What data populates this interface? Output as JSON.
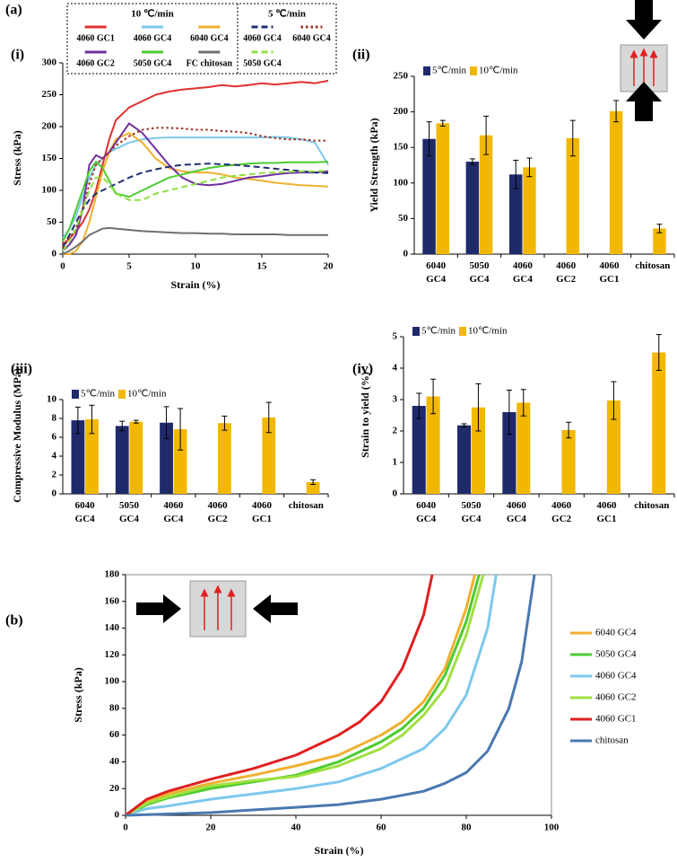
{
  "figure_labels": [
    "(a)",
    "(b)"
  ],
  "chart_data": [
    {
      "type": "line",
      "panel": "(i)",
      "xlabel": "Strain (%)",
      "ylabel": "Stress (kPa)",
      "xlim": [
        0,
        20
      ],
      "xticks": [
        0,
        5,
        10,
        15,
        20
      ],
      "ylim": [
        0,
        300
      ],
      "yticks": [
        0,
        50,
        100,
        150,
        200,
        250,
        300
      ],
      "legend": "upper center",
      "legend_titles": [
        "10 ℃/min",
        "5 ℃/min"
      ],
      "series": [
        {
          "name": "4060 GC1",
          "color": "#e03030",
          "linestyle": "solid",
          "x": [
            0,
            0.5,
            1,
            1.5,
            2,
            2.5,
            3,
            3.5,
            4,
            5,
            6,
            7,
            8,
            9,
            10,
            11,
            12,
            13,
            14,
            15,
            16,
            17,
            18,
            19,
            20
          ],
          "values": [
            15,
            25,
            35,
            50,
            70,
            100,
            140,
            180,
            210,
            230,
            240,
            250,
            255,
            258,
            260,
            262,
            265,
            263,
            265,
            268,
            266,
            268,
            270,
            268,
            272
          ]
        },
        {
          "name": "4060 GC4",
          "color": "#7cc8ec",
          "linestyle": "solid",
          "x": [
            0,
            0.5,
            1,
            1.5,
            2,
            2.5,
            3,
            3.5,
            4,
            5,
            6,
            7,
            8,
            9,
            10,
            11,
            12,
            13,
            14,
            15,
            16,
            17,
            18,
            19,
            20
          ],
          "values": [
            25,
            40,
            60,
            90,
            120,
            140,
            150,
            160,
            165,
            175,
            180,
            182,
            183,
            183,
            183,
            183,
            183,
            183,
            183,
            183,
            184,
            183,
            180,
            175,
            140
          ]
        },
        {
          "name": "6040 GC4",
          "color": "#f0b030",
          "linestyle": "solid",
          "x": [
            0,
            0.5,
            1,
            1.5,
            2,
            2.5,
            3,
            3.5,
            4,
            5,
            6,
            7,
            8,
            9,
            10,
            11,
            12,
            13,
            14,
            15,
            16,
            17,
            18,
            19,
            20
          ],
          "values": [
            0,
            0,
            5,
            20,
            50,
            90,
            130,
            160,
            180,
            190,
            175,
            150,
            135,
            130,
            128,
            128,
            125,
            120,
            118,
            115,
            112,
            110,
            108,
            107,
            106
          ]
        },
        {
          "name": "4060 GC2",
          "color": "#7030a0",
          "linestyle": "solid",
          "x": [
            0,
            0.5,
            1,
            1.5,
            2,
            2.5,
            3,
            3.5,
            4,
            5,
            6,
            7,
            8,
            9,
            10,
            11,
            12,
            13,
            14,
            15,
            16,
            17,
            18,
            19,
            20
          ],
          "values": [
            5,
            15,
            30,
            70,
            140,
            155,
            150,
            160,
            175,
            205,
            190,
            165,
            140,
            120,
            110,
            108,
            110,
            115,
            120,
            122,
            125,
            127,
            128,
            128,
            130
          ]
        },
        {
          "name": "5050 GC4",
          "color": "#4ccc30",
          "linestyle": "solid",
          "x": [
            0,
            0.5,
            1,
            1.5,
            2,
            2.5,
            3,
            3.5,
            4,
            5,
            6,
            7,
            8,
            9,
            10,
            11,
            12,
            13,
            14,
            15,
            16,
            17,
            18,
            19,
            20
          ],
          "values": [
            20,
            40,
            70,
            100,
            130,
            145,
            135,
            115,
            95,
            90,
            100,
            110,
            120,
            125,
            130,
            135,
            138,
            140,
            142,
            143,
            143,
            144,
            144,
            144,
            145
          ]
        },
        {
          "name": "FC chitosan",
          "color": "#707070",
          "linestyle": "solid",
          "x": [
            0,
            0.5,
            1,
            1.5,
            2,
            2.5,
            3,
            3.5,
            4,
            5,
            6,
            7,
            8,
            9,
            10,
            11,
            12,
            13,
            14,
            15,
            16,
            17,
            18,
            19,
            20
          ],
          "values": [
            0,
            5,
            12,
            20,
            30,
            35,
            40,
            41,
            40,
            38,
            36,
            35,
            34,
            33,
            33,
            32,
            32,
            31,
            31,
            31,
            31,
            30,
            30,
            30,
            30
          ]
        },
        {
          "name": "4060 GC4",
          "color": "#1f3070",
          "linestyle": "dashed",
          "x": [
            0,
            0.5,
            1,
            1.5,
            2,
            2.5,
            3,
            3.5,
            4,
            5,
            6,
            7,
            8,
            9,
            10,
            11,
            12,
            13,
            14,
            15,
            16,
            17,
            18,
            19,
            20
          ],
          "values": [
            10,
            30,
            50,
            70,
            85,
            95,
            100,
            105,
            110,
            120,
            128,
            133,
            137,
            140,
            141,
            142,
            141,
            140,
            138,
            136,
            134,
            132,
            130,
            128,
            127
          ]
        },
        {
          "name": "6040 GC4",
          "color": "#a03020",
          "linestyle": "dotted",
          "x": [
            0,
            0.5,
            1,
            1.5,
            2,
            2.5,
            3,
            3.5,
            4,
            5,
            6,
            7,
            8,
            9,
            10,
            11,
            12,
            13,
            14,
            15,
            16,
            17,
            18,
            19,
            20
          ],
          "values": [
            10,
            25,
            40,
            70,
            110,
            140,
            150,
            160,
            170,
            185,
            195,
            198,
            198,
            197,
            195,
            195,
            193,
            192,
            190,
            185,
            182,
            180,
            180,
            178,
            178
          ]
        },
        {
          "name": "5050 GC4",
          "color": "#90e040",
          "linestyle": "dashed",
          "x": [
            0,
            0.5,
            1,
            1.5,
            2,
            2.5,
            3,
            3.5,
            4,
            5,
            6,
            7,
            8,
            9,
            10,
            11,
            12,
            13,
            14,
            15,
            16,
            17,
            18,
            19,
            20
          ],
          "values": [
            5,
            20,
            40,
            70,
            100,
            120,
            120,
            110,
            95,
            85,
            85,
            95,
            100,
            105,
            110,
            115,
            120,
            123,
            125,
            127,
            128,
            129,
            130,
            130,
            131
          ]
        }
      ]
    },
    {
      "type": "bar",
      "panel": "(ii)",
      "ylabel": "Yield Strength (kPa)",
      "ylim": [
        0,
        250
      ],
      "yticks": [
        0,
        50,
        100,
        150,
        200,
        250
      ],
      "legend": "upper center",
      "categories": [
        [
          "6040",
          "GC4"
        ],
        [
          "5050",
          "GC4"
        ],
        [
          "4060",
          "GC4"
        ],
        [
          "4060",
          "GC2"
        ],
        [
          "4060",
          "GC1"
        ],
        [
          "chitosan"
        ]
      ],
      "series": [
        {
          "name": "5℃/min",
          "color": "#1f2a6b",
          "values": [
            162,
            130,
            112,
            null,
            null,
            null
          ],
          "errors": [
            24,
            4,
            20,
            null,
            null,
            null
          ]
        },
        {
          "name": "10℃/min",
          "color": "#f2b800",
          "values": [
            184,
            167,
            122,
            163,
            201,
            36
          ],
          "errors": [
            4,
            27,
            13,
            25,
            15,
            6
          ]
        }
      ]
    },
    {
      "type": "bar",
      "panel": "(iii)",
      "ylabel": "Compressive Modulus (MPa)",
      "ylim": [
        0,
        10
      ],
      "yticks": [
        0,
        2,
        4,
        6,
        8,
        10
      ],
      "legend": "upper center",
      "categories": [
        [
          "6040",
          "GC4"
        ],
        [
          "5050",
          "GC4"
        ],
        [
          "4060",
          "GC4"
        ],
        [
          "4060",
          "GC2"
        ],
        [
          "4060",
          "GC1"
        ],
        [
          "chitosan"
        ]
      ],
      "series": [
        {
          "name": "5℃/min",
          "color": "#1f2a6b",
          "values": [
            7.8,
            7.2,
            7.55,
            null,
            null,
            null
          ],
          "errors": [
            1.4,
            0.5,
            1.7,
            null,
            null,
            null
          ]
        },
        {
          "name": "10℃/min",
          "color": "#f2b800",
          "values": [
            7.9,
            7.65,
            6.85,
            7.5,
            8.1,
            1.25
          ],
          "errors": [
            1.5,
            0.15,
            2.2,
            0.75,
            1.6,
            0.25
          ]
        }
      ]
    },
    {
      "type": "bar",
      "panel": "(iv)",
      "ylabel": "Strain to yield (%)",
      "ylim": [
        0,
        5
      ],
      "yticks": [
        0,
        1,
        2,
        3,
        4,
        5
      ],
      "legend": "upper center",
      "categories": [
        [
          "6040",
          "GC4"
        ],
        [
          "5050",
          "GC4"
        ],
        [
          "4060",
          "GC4"
        ],
        [
          "4060",
          "GC2"
        ],
        [
          "4060",
          "GC1"
        ],
        [
          "chitosan"
        ]
      ],
      "series": [
        {
          "name": "5℃/min",
          "color": "#1f2a6b",
          "values": [
            2.8,
            2.18,
            2.6,
            null,
            null,
            null
          ],
          "errors": [
            0.4,
            0.05,
            0.7,
            null,
            null,
            null
          ]
        },
        {
          "name": "10℃/min",
          "color": "#f2b800",
          "values": [
            3.1,
            2.75,
            2.9,
            2.03,
            2.97,
            4.5
          ],
          "errors": [
            0.55,
            0.75,
            0.42,
            0.25,
            0.6,
            0.57
          ]
        }
      ]
    },
    {
      "type": "line",
      "xlabel": "Strain (%)",
      "ylabel": "Stress (kPa)",
      "xlim": [
        0,
        100
      ],
      "xticks": [
        0,
        20,
        40,
        60,
        80,
        100
      ],
      "ylim": [
        0,
        180
      ],
      "yticks": [
        0,
        20,
        40,
        60,
        80,
        100,
        120,
        140,
        160,
        180
      ],
      "legend": "right",
      "series": [
        {
          "name": "6040 GC4",
          "color": "#f0b030",
          "linestyle": "solid",
          "x": [
            0,
            5,
            10,
            20,
            30,
            40,
            50,
            60,
            65,
            70,
            75,
            80,
            82
          ],
          "values": [
            0,
            10,
            16,
            24,
            30,
            37,
            45,
            60,
            70,
            85,
            110,
            155,
            180
          ]
        },
        {
          "name": "5050 GC4",
          "color": "#4ccc30",
          "linestyle": "solid",
          "x": [
            0,
            5,
            10,
            20,
            30,
            40,
            50,
            60,
            65,
            70,
            75,
            80,
            83
          ],
          "values": [
            0,
            8,
            13,
            20,
            25,
            30,
            40,
            55,
            65,
            80,
            105,
            145,
            180
          ]
        },
        {
          "name": "4060 GC4",
          "color": "#7cc8ec",
          "linestyle": "solid",
          "x": [
            0,
            5,
            10,
            20,
            30,
            40,
            50,
            60,
            70,
            75,
            80,
            85,
            87
          ],
          "values": [
            0,
            5,
            7,
            12,
            16,
            20,
            25,
            35,
            50,
            65,
            90,
            140,
            180
          ]
        },
        {
          "name": "4060 GC2",
          "color": "#a0e040",
          "linestyle": "solid",
          "x": [
            0,
            5,
            10,
            20,
            30,
            40,
            50,
            60,
            65,
            70,
            75,
            80,
            84
          ],
          "values": [
            0,
            9,
            14,
            22,
            26,
            29,
            37,
            50,
            60,
            75,
            95,
            135,
            180
          ]
        },
        {
          "name": "4060 GC1",
          "color": "#e02020",
          "linestyle": "solid",
          "x": [
            0,
            5,
            10,
            20,
            30,
            40,
            50,
            55,
            60,
            65,
            70,
            72
          ],
          "values": [
            0,
            12,
            18,
            27,
            35,
            45,
            60,
            70,
            85,
            110,
            150,
            180
          ]
        },
        {
          "name": "chitosan",
          "color": "#4a78b0",
          "linestyle": "solid",
          "x": [
            0,
            10,
            20,
            30,
            40,
            50,
            60,
            70,
            75,
            80,
            85,
            90,
            93,
            96
          ],
          "values": [
            0,
            1,
            2,
            4,
            6,
            8,
            12,
            18,
            24,
            32,
            48,
            80,
            115,
            180
          ]
        }
      ]
    }
  ]
}
